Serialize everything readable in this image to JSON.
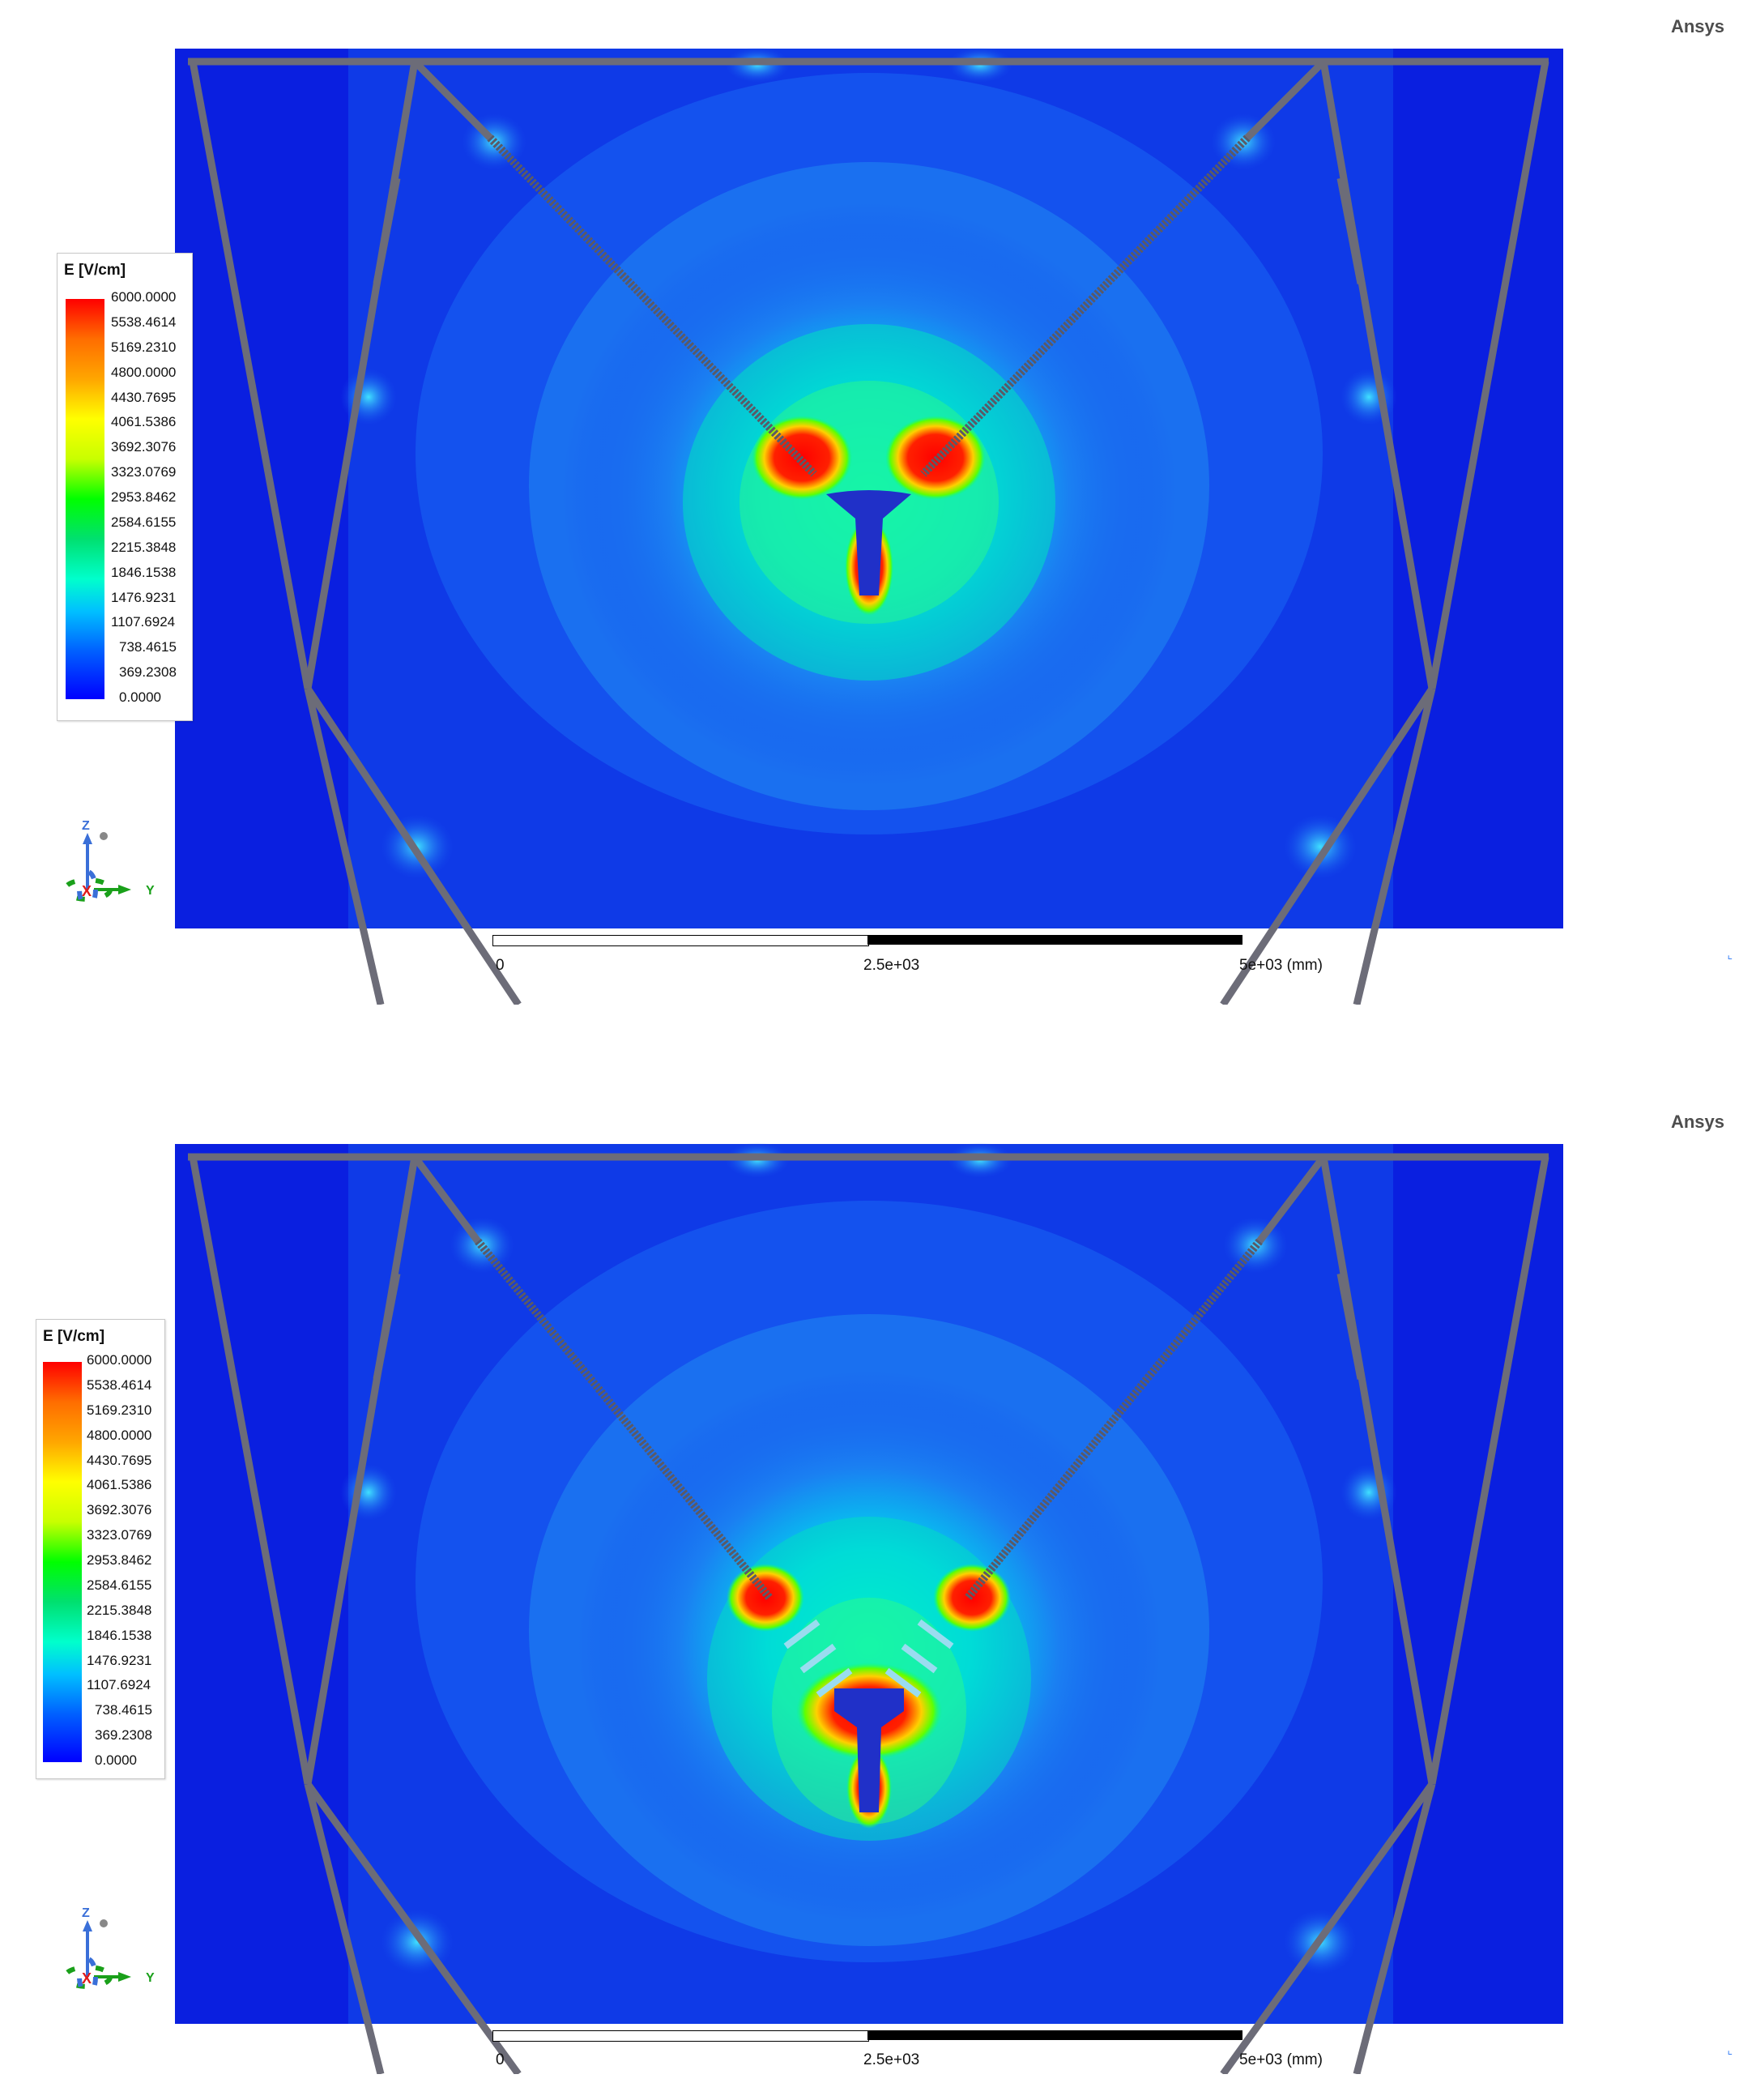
{
  "brand": "Ansys",
  "panels": [
    {
      "id": "panel-1",
      "legend": {
        "title": "E [V/cm]",
        "labels": [
          "6000.0000",
          "5538.4614",
          "5169.2310",
          "4800.0000",
          "4430.7695",
          "4061.5386",
          "3692.3076",
          "3323.0769",
          "2953.8462",
          "2584.6155",
          "2215.3848",
          "1846.1538",
          "1476.9231",
          "1107.6924",
          "738.4615",
          "369.2308",
          "0.0000"
        ]
      },
      "triad": {
        "z": "Z",
        "x": "X",
        "y": "Y"
      },
      "scale": {
        "start": "0",
        "mid": "2.5e+03",
        "end": "5e+03 (mm)"
      }
    },
    {
      "id": "panel-2",
      "legend": {
        "title": "E [V/cm]",
        "labels": [
          "6000.0000",
          "5538.4614",
          "5169.2310",
          "4800.0000",
          "4430.7695",
          "4061.5386",
          "3692.3076",
          "3323.0769",
          "2953.8462",
          "2584.6155",
          "2215.3848",
          "1846.1538",
          "1476.9231",
          "1107.6924",
          "738.4615",
          "369.2308",
          "0.0000"
        ]
      },
      "triad": {
        "z": "Z",
        "x": "X",
        "y": "Y"
      },
      "scale": {
        "start": "0",
        "mid": "2.5e+03",
        "end": "5e+03 (mm)"
      }
    }
  ],
  "colors": {
    "field_background": "#0a1fe0",
    "field_mid": "#1560f0",
    "hotspot": "#ff1a00",
    "structure": "#6c6c78"
  }
}
